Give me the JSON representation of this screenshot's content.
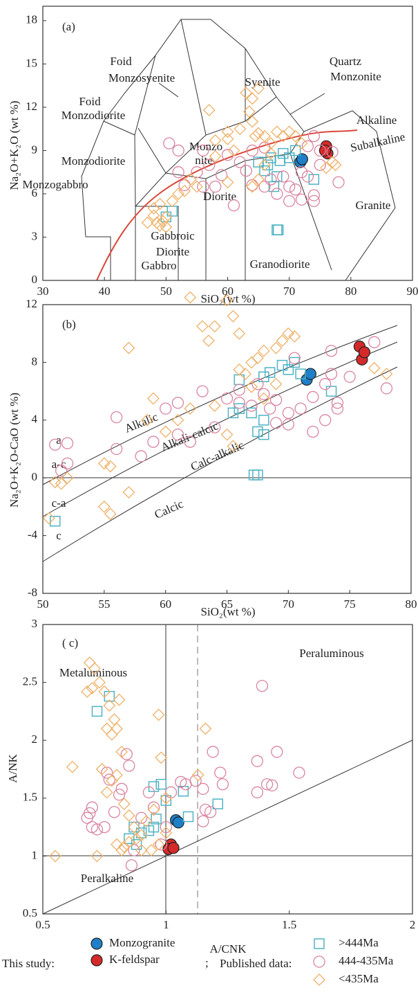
{
  "legend": {
    "this_study": "This study:",
    "separator": ";",
    "published": "Published data:"
  },
  "chart_data": [
    {
      "type": "scatter",
      "panel_label": "(a)",
      "xlabel": "SiO₂(wt %)",
      "ylabel": "Na₂O+K₂O (wt %)",
      "xlim": [
        30,
        90
      ],
      "ylim": [
        0,
        19
      ],
      "xticks": [
        30,
        40,
        50,
        60,
        70,
        80,
        90
      ],
      "yticks": [
        0,
        3,
        6,
        9,
        12,
        15,
        18
      ],
      "annotations": [
        "Foid",
        "Monzosyenite",
        "Foid",
        "Monzodiorite",
        "Syenite",
        "Quartz",
        "Monzonite",
        "Monzo",
        "nite",
        "Alkaline",
        "Subalkaline",
        "Monzodiorite",
        "Monzogabbro",
        "Diorite",
        "Gabbroic",
        "Diorite",
        "Gabbro",
        "Granodiorite",
        "Granite"
      ],
      "series": [
        {
          "name": "Monzogranite",
          "color": "#1f7fc8",
          "marker": "filled-circle",
          "x": [
            71.8,
            72.1
          ],
          "values": [
            8.2,
            8.4
          ]
        },
        {
          "name": "K-feldspar",
          "color": "#d42a2a",
          "marker": "filled-circle",
          "x": [
            76,
            76.2,
            75.8
          ],
          "values": [
            9.3,
            8.8,
            9.0
          ]
        },
        {
          "name": ">444Ma",
          "color": "#4fb3c4",
          "marker": "square",
          "x": [
            51,
            50,
            66,
            66.5,
            67,
            68,
            68.5,
            69,
            70,
            71,
            74,
            67.5,
            68,
            68.2,
            65
          ],
          "values": [
            4.8,
            4.4,
            7.6,
            8.0,
            8.5,
            7.2,
            8.3,
            8.8,
            8.5,
            9.0,
            7.0,
            6.5,
            3.5,
            3.5,
            8.2
          ]
        },
        {
          "name": "444-435Ma",
          "color": "#d9839f",
          "marker": "circle",
          "x": [
            50.5,
            52,
            52,
            53,
            55,
            56,
            57,
            58,
            59,
            60,
            61,
            62,
            63,
            64,
            66,
            66,
            67,
            68,
            69,
            70,
            70,
            71,
            72,
            73,
            73,
            74,
            74,
            74,
            75,
            77,
            78,
            75,
            56,
            64,
            72
          ],
          "values": [
            9.5,
            9.0,
            7.5,
            6.6,
            7.5,
            6.5,
            8.0,
            6.5,
            7.3,
            8.7,
            5.2,
            8.2,
            7.6,
            6.6,
            9.2,
            6.5,
            7.0,
            6.0,
            7.2,
            6.5,
            5.5,
            6.3,
            5.6,
            7.2,
            9.3,
            10.0,
            5.5,
            5.9,
            8.0,
            8.9,
            6.8,
            9.0,
            9.0,
            9.0,
            7.5
          ]
        },
        {
          "name": "<435Ma",
          "color": "#efb066",
          "marker": "diamond",
          "x": [
            48,
            48.5,
            49,
            49.5,
            50,
            50,
            47,
            48,
            49,
            51,
            52,
            53,
            54,
            55,
            58,
            60,
            60,
            61,
            62,
            63,
            64,
            63.5,
            64,
            64.5,
            65,
            66,
            67,
            68,
            69,
            70,
            71,
            72,
            66,
            67,
            65,
            64,
            57,
            58,
            65,
            76,
            77,
            77.5,
            60
          ],
          "values": [
            4.5,
            4.0,
            3.8,
            4.1,
            4.4,
            3.7,
            4.0,
            5.0,
            5.3,
            5.5,
            6.0,
            6.2,
            7.0,
            6.5,
            8.6,
            10.3,
            9.8,
            9.0,
            10.5,
            13.0,
            12.6,
            11.7,
            11.0,
            10.0,
            10.2,
            10.0,
            9.5,
            10.3,
            10.0,
            10.3,
            10.0,
            9.5,
            8.0,
            8.8,
            7.0,
            6.5,
            11.8,
            9.7,
            13.3,
            7.8,
            8.2,
            8.0,
            6.8
          ]
        }
      ]
    },
    {
      "type": "scatter",
      "panel_label": "(b)",
      "xlabel": "SiO₂(wt %)",
      "ylabel": "Na₂O+K₂O-CaO (wt %)",
      "xlim": [
        50,
        80
      ],
      "ylim": [
        -8,
        12
      ],
      "xticks": [
        50,
        55,
        60,
        65,
        70,
        75,
        80
      ],
      "yticks": [
        -8,
        -4,
        0,
        4,
        8,
        12
      ],
      "annotations": [
        "Alkalic",
        "Alkali-calcic",
        "Calc-alkalic",
        "Calcic",
        "a",
        "a-c",
        "c-a",
        "c"
      ],
      "series": [
        {
          "color": "#1f7fc8",
          "marker": "filled-circle",
          "x": [
            71.5,
            71.8
          ],
          "values": [
            6.8,
            7.2
          ]
        },
        {
          "color": "#d42a2a",
          "marker": "filled-circle",
          "x": [
            75.8,
            76,
            76.2
          ],
          "values": [
            9.1,
            8.2,
            8.7
          ]
        },
        {
          "color": "#4fb3c4",
          "marker": "square",
          "x": [
            51,
            66,
            67,
            66,
            68,
            68.5,
            69.5,
            70,
            71,
            68,
            67.5,
            68,
            67.2,
            67.5,
            73.5,
            65.5,
            70.5
          ],
          "values": [
            -3,
            6.8,
            4.5,
            4.8,
            7.0,
            7.3,
            7.8,
            7.5,
            7.2,
            4.0,
            3.2,
            3.0,
            0.2,
            0.2,
            6.0,
            4.5,
            8.0
          ]
        },
        {
          "color": "#d9839f",
          "marker": "circle",
          "x": [
            51,
            52,
            52,
            51.5,
            56,
            56,
            58,
            59,
            60,
            61,
            61,
            62,
            63,
            64,
            65,
            66,
            66,
            67,
            67.5,
            68,
            68.5,
            69,
            69,
            70,
            70,
            70.5,
            71,
            72,
            72,
            73,
            73,
            73.5,
            74,
            74,
            75,
            77,
            78,
            73.5
          ],
          "values": [
            2.3,
            2.4,
            1.0,
            0.5,
            4.2,
            2.0,
            1.5,
            2.5,
            4.8,
            5.2,
            3.0,
            2.5,
            6.0,
            3.5,
            5.5,
            6.1,
            5.2,
            5.0,
            6.5,
            5.8,
            4.8,
            5.4,
            3.8,
            4.5,
            3.7,
            8.3,
            4.8,
            5.6,
            3.2,
            6.5,
            4.0,
            7.2,
            4.8,
            5.2,
            7.0,
            9.4,
            6.2,
            8.8
          ]
        },
        {
          "color": "#efb066",
          "marker": "diamond",
          "x": [
            51,
            51.5,
            52,
            55,
            55.5,
            55,
            55.5,
            57,
            57,
            59,
            58.5,
            60,
            61,
            62,
            63,
            63.5,
            62,
            65,
            65.5,
            66,
            64,
            65,
            65.5,
            66,
            66.5,
            67,
            67.5,
            68,
            69,
            69.5,
            70,
            70.5,
            68,
            67,
            69,
            64,
            77,
            78,
            50.5
          ],
          "values": [
            -0.3,
            -0.4,
            0,
            1.0,
            0.8,
            -2.0,
            -2.5,
            -1.0,
            9.0,
            5.5,
            4.0,
            3.2,
            4.0,
            4.8,
            10.5,
            9.5,
            12.5,
            12.3,
            11.2,
            10.0,
            5.0,
            3.0,
            2.2,
            7.5,
            7.2,
            8.0,
            8.3,
            8.8,
            9.0,
            9.5,
            10.0,
            9.8,
            5.5,
            6.3,
            6.5,
            10.5,
            7.6,
            7.2,
            -2.8
          ]
        }
      ]
    },
    {
      "type": "scatter",
      "panel_label": "( c)",
      "xlabel": "A/CNK",
      "ylabel": "A/NK",
      "xlim": [
        0.5,
        2
      ],
      "ylim": [
        0.5,
        3
      ],
      "xticks": [
        0.5,
        1,
        1.5,
        2
      ],
      "yticks": [
        0.5,
        1,
        1.5,
        2,
        2.5,
        3
      ],
      "annotations": [
        "Peraluminous",
        "Metaluminous",
        "Peralkaline"
      ],
      "series": [
        {
          "color": "#1f7fc8",
          "marker": "filled-circle",
          "x": [
            1.04,
            1.05
          ],
          "values": [
            1.31,
            1.29
          ]
        },
        {
          "color": "#d42a2a",
          "marker": "filled-circle",
          "x": [
            1.02,
            1.01,
            1.03
          ],
          "values": [
            1.1,
            1.06,
            1.07
          ]
        },
        {
          "color": "#4fb3c4",
          "marker": "square",
          "x": [
            0.72,
            0.77,
            0.95,
            0.98,
            1.07,
            1.09,
            0.87,
            0.9,
            0.93,
            0.95,
            0.88,
            1.0,
            1.21,
            0.96,
            0.85
          ],
          "values": [
            2.25,
            2.38,
            1.6,
            1.62,
            1.56,
            1.34,
            1.25,
            1.2,
            1.22,
            1.25,
            1.1,
            1.48,
            1.45,
            1.32,
            1.15
          ]
        },
        {
          "color": "#d9839f",
          "marker": "circle",
          "x": [
            0.68,
            0.69,
            0.7,
            0.7,
            0.72,
            0.75,
            0.76,
            0.77,
            0.79,
            0.81,
            0.82,
            0.84,
            0.85,
            0.87,
            0.86,
            0.9,
            0.93,
            0.95,
            0.98,
            1.0,
            1.02,
            1.06,
            1.08,
            1.12,
            1.15,
            1.15,
            1.18,
            1.19,
            1.22,
            1.23,
            1.37,
            1.37,
            1.39,
            1.41,
            1.43,
            1.45,
            1.54,
            1.16
          ],
          "values": [
            1.33,
            1.37,
            1.42,
            1.25,
            1.23,
            1.25,
            1.72,
            1.66,
            1.38,
            1.53,
            1.58,
            1.88,
            1.78,
            1.05,
            0.92,
            1.33,
            1.55,
            1.42,
            1.1,
            1.25,
            1.55,
            1.64,
            1.62,
            1.65,
            1.58,
            1.3,
            1.38,
            1.9,
            1.72,
            1.62,
            1.55,
            1.82,
            2.47,
            1.62,
            1.61,
            1.9,
            1.72,
            1.4
          ]
        },
        {
          "color": "#efb066",
          "marker": "diamond",
          "x": [
            0.55,
            0.62,
            0.69,
            0.7,
            0.71,
            0.68,
            0.73,
            0.75,
            0.76,
            0.77,
            0.78,
            0.79,
            0.8,
            0.81,
            0.82,
            0.74,
            0.76,
            0.78,
            0.8,
            0.83,
            0.85,
            0.87,
            0.8,
            0.82,
            0.83,
            0.85,
            0.88,
            0.9,
            0.92,
            0.95,
            0.97,
            0.98,
            1.0,
            1.0,
            0.97,
            0.94,
            1.16,
            1.13,
            0.72,
            0.9
          ],
          "values": [
            1.0,
            1.77,
            2.67,
            2.45,
            2.62,
            2.42,
            2.5,
            2.42,
            2.1,
            2.3,
            2.05,
            2.18,
            2.1,
            2.35,
            1.9,
            1.75,
            1.55,
            1.65,
            1.7,
            1.45,
            1.35,
            1.25,
            1.1,
            1.05,
            1.08,
            1.12,
            1.15,
            1.18,
            1.3,
            1.4,
            2.22,
            1.85,
            1.5,
            1.2,
            1.1,
            1.05,
            2.1,
            1.7,
            1.0,
            1.05
          ]
        }
      ]
    }
  ]
}
